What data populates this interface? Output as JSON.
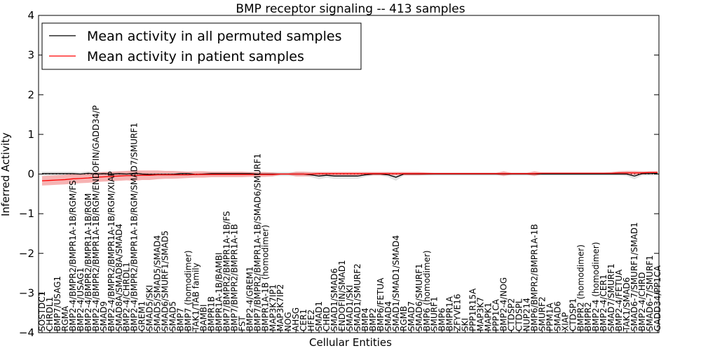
{
  "chart_data": {
    "type": "line",
    "title": "BMP receptor signaling -- 413 samples",
    "xlabel": "Cellular Entities",
    "ylabel": "Inferred Activity",
    "ylim": [
      -4,
      4
    ],
    "yticks": [
      "-4",
      "-3",
      "-2",
      "-1",
      "0",
      "1",
      "2",
      "3",
      "4"
    ],
    "grid": false,
    "legend_position": "top-left",
    "categories": [
      "SOSTDC1",
      "CHRDL1",
      "BMP7/USAG1",
      "RGMA",
      "BMP2-4/BMPR2/BMPR1A-1B/RGM/FS",
      "BMP2-4/USAG1",
      "BMP2-4/BMPR2/BMPR1A-1B/RGM",
      "BMP2-4/BMPR2/BMPR1A-1B/RGM/ENDOFIN/GADD34/P",
      "SMAD9",
      "BMP2-4/BMPR2/BMPR1A-1B/RGM/XIAP",
      "SMAD8A/SMAD8A/SMAD4",
      "BMP2-4/CHRDL1",
      "BMP2-4/BMPR2/BMPR1A-1B/RGM/SMAD7/SMURF1",
      "GREM1",
      "SMAD5/SKI",
      "SMAD5/SMAD5/SMAD4",
      "SMAD6/SMURF1/SMAD5",
      "SMAD5",
      "BMP7",
      "BMP7 (homodimer)",
      "TAK1/TAB family",
      "BAMBI",
      "BMPR1B",
      "BMPR1A-1B/BAMBI",
      "BMP7/BMPR2/BMPR1A-1B/FS",
      "BMP7/BMPR2/BMPR1A-1B",
      "FST",
      "BMP2-4/GREM1",
      "BMP7/BMPR2/BMPR1A-1B/SMAD6/SMURF1",
      "BMPR1A-1B (homodimer)",
      "MAP3K7IP1",
      "MAP3K7IP2",
      "NOG",
      "AHSG",
      "CER1",
      "HFE2",
      "SMAD1",
      "CHRD",
      "SMAD1/SMAD6",
      "ENDOFIN/SMAD1",
      "SMAD1/SKI",
      "SMAD1/SMURF2",
      "BMP4",
      "BMP2",
      "BMP6/FETUA",
      "SMAD4",
      "SMAD1/SMAD1/SMAD4",
      "RGMB",
      "SMAD7",
      "SMAD6/SMURF1",
      "BMP6 (homodimer)",
      "SMURF1",
      "BMP6",
      "BMPR1A",
      "ZFYVE16",
      "SKI",
      "PPP1R15A",
      "MAP3K7",
      "MAPK1",
      "PPP1CA",
      "BMP2-4/NOG",
      "CTDSP2",
      "CTDSPL",
      "NUP214",
      "BMP6/BMPR2/BMPR1A-1B",
      "SMURF2",
      "PPM1A",
      "SMAD6",
      "XIAP",
      "CTDSP1",
      "BMPR2 (homodimer)",
      "BMPR2",
      "BMP2-4 (homodimer)",
      "BMP2-4/CER1",
      "SMAD7/SMURF1",
      "BMP2-4/FETUA",
      "TAK1/SMAD6",
      "SMAD6-7/SMURF1/SMAD1",
      "BMP2-4/CHRD",
      "SMAD6-7/SMURF1",
      "GADD34/PP1CA"
    ],
    "series": [
      {
        "name": "Mean activity in all permuted samples",
        "color": "#000000",
        "band_color": "#cccccc",
        "values": [
          0.01,
          0.01,
          0.01,
          0.01,
          0.01,
          0.0,
          0.02,
          0.0,
          0.01,
          0.0,
          0.01,
          0.0,
          0.02,
          0.0,
          -0.01,
          -0.01,
          -0.01,
          -0.01,
          0.01,
          0.01,
          -0.01,
          0.0,
          0.01,
          0.01,
          0.01,
          0.01,
          0.01,
          0.01,
          0.0,
          0.0,
          0.0,
          0.0,
          0.0,
          0.0,
          0.0,
          -0.02,
          -0.05,
          -0.03,
          -0.05,
          -0.05,
          -0.05,
          -0.05,
          -0.02,
          0.0,
          0.0,
          -0.02,
          -0.08,
          0.0,
          0.0,
          0.0,
          0.0,
          0.0,
          0.0,
          0.0,
          0.0,
          0.0,
          0.0,
          0.0,
          0.0,
          0.0,
          0.0,
          0.0,
          0.0,
          0.0,
          0.0,
          0.0,
          0.0,
          0.0,
          0.0,
          0.0,
          0.0,
          0.0,
          0.0,
          0.0,
          0.0,
          0.0,
          0.0,
          -0.05,
          0.01,
          0.01,
          0.02
        ],
        "spread": [
          0.05,
          0.05,
          0.05,
          0.05,
          0.05,
          0.05,
          0.05,
          0.05,
          0.05,
          0.05,
          0.05,
          0.05,
          0.05,
          0.05,
          0.04,
          0.04,
          0.04,
          0.04,
          0.04,
          0.04,
          0.04,
          0.04,
          0.04,
          0.04,
          0.04,
          0.04,
          0.04,
          0.04,
          0.04,
          0.04,
          0.05,
          0.05,
          0.05,
          0.05,
          0.05,
          0.06,
          0.08,
          0.06,
          0.07,
          0.07,
          0.07,
          0.07,
          0.05,
          0.04,
          0.04,
          0.06,
          0.09,
          0.04,
          0.04,
          0.04,
          0.04,
          0.04,
          0.04,
          0.04,
          0.04,
          0.04,
          0.04,
          0.04,
          0.04,
          0.04,
          0.04,
          0.04,
          0.04,
          0.04,
          0.04,
          0.04,
          0.04,
          0.04,
          0.04,
          0.04,
          0.04,
          0.04,
          0.04,
          0.04,
          0.04,
          0.04,
          0.05,
          0.08,
          0.05,
          0.05,
          0.05
        ]
      },
      {
        "name": "Mean activity in patient samples",
        "color": "#ff0000",
        "band_color": "#f08080",
        "values": [
          -0.17,
          -0.16,
          -0.15,
          -0.14,
          -0.12,
          -0.11,
          -0.1,
          -0.08,
          -0.07,
          -0.06,
          -0.05,
          -0.04,
          -0.04,
          -0.03,
          -0.03,
          -0.02,
          -0.02,
          -0.02,
          -0.02,
          -0.02,
          -0.01,
          -0.01,
          -0.01,
          -0.01,
          -0.01,
          -0.01,
          -0.01,
          -0.01,
          -0.01,
          -0.01,
          -0.01,
          0.0,
          0.0,
          0.0,
          0.0,
          0.0,
          0.01,
          0.01,
          0.01,
          0.01,
          0.01,
          0.01,
          0.01,
          0.01,
          0.01,
          0.01,
          0.01,
          0.01,
          0.01,
          0.01,
          0.01,
          0.01,
          0.01,
          0.01,
          0.01,
          0.01,
          0.01,
          0.01,
          0.01,
          0.01,
          0.01,
          0.01,
          0.01,
          0.01,
          0.01,
          0.02,
          0.02,
          0.02,
          0.02,
          0.02,
          0.02,
          0.02,
          0.02,
          0.02,
          0.02,
          0.03,
          0.03,
          0.03,
          0.03,
          0.04,
          0.04
        ],
        "spread": [
          0.12,
          0.12,
          0.12,
          0.12,
          0.12,
          0.12,
          0.12,
          0.12,
          0.12,
          0.12,
          0.12,
          0.12,
          0.13,
          0.12,
          0.12,
          0.11,
          0.1,
          0.1,
          0.09,
          0.08,
          0.08,
          0.08,
          0.07,
          0.07,
          0.07,
          0.07,
          0.07,
          0.06,
          0.06,
          0.06,
          0.05,
          0.02,
          0.02,
          0.06,
          0.06,
          0.05,
          0.04,
          0.04,
          0.04,
          0.04,
          0.04,
          0.04,
          0.04,
          0.04,
          0.04,
          0.04,
          0.04,
          0.04,
          0.04,
          0.04,
          0.03,
          0.02,
          0.02,
          0.02,
          0.02,
          0.02,
          0.02,
          0.02,
          0.02,
          0.02,
          0.06,
          0.02,
          0.02,
          0.02,
          0.06,
          0.02,
          0.02,
          0.02,
          0.02,
          0.02,
          0.02,
          0.02,
          0.02,
          0.02,
          0.03,
          0.04,
          0.05,
          0.05,
          0.04,
          0.03,
          0.03
        ]
      }
    ]
  }
}
